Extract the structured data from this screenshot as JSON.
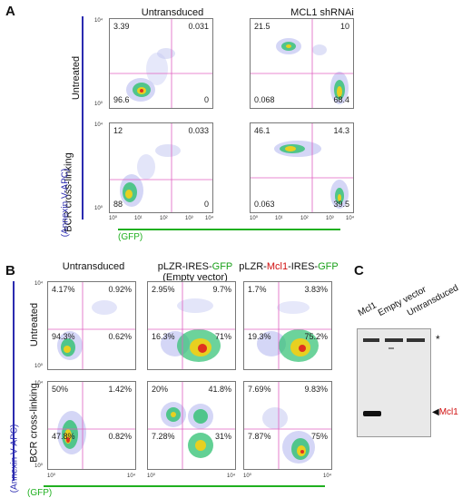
{
  "panel_a": {
    "letter": "A",
    "col_titles": [
      "Untransduced",
      "MCL1 shRNAi"
    ],
    "row_titles": [
      "Untreated",
      "BCR cross-linking"
    ],
    "y_axis": "(Annexin V-APC)",
    "x_axis": "(GFP)",
    "plots": [
      {
        "ul": "3.39",
        "ur": "0.031",
        "ll": "96.6",
        "lr": "0"
      },
      {
        "ul": "21.5",
        "ur": "10",
        "ll": "0.068",
        "lr": "68.4"
      },
      {
        "ul": "12",
        "ur": "0.033",
        "ll": "88",
        "lr": "0"
      },
      {
        "ul": "46.1",
        "ur": "14.3",
        "ll": "0.063",
        "lr": "39.5"
      }
    ]
  },
  "panel_b": {
    "letter": "B",
    "col_titles": [
      {
        "line1_a": "Untransduced",
        "line1_b": "",
        "line1_c": "",
        "line1_d": "",
        "line1_e": "",
        "line2": ""
      },
      {
        "line1_a": "pLZR-IRES-",
        "line1_b": "GFP",
        "line1_c": "",
        "line1_d": "",
        "line1_e": "",
        "line2": "(Empty vector)"
      },
      {
        "line1_a": "pLZR-",
        "line1_b": "Mcl1",
        "line1_c": "-IRES-",
        "line1_d": "GFP",
        "line1_e": "",
        "line2": ""
      }
    ],
    "row_titles": [
      "Untreated",
      "BCR cross-linking"
    ],
    "y_axis": "(Annexin V-APC)",
    "x_axis": "(GFP)",
    "plots": [
      {
        "ul": "4.17%",
        "ur": "0.92%",
        "ll": "94.3%",
        "lr": "0.62%"
      },
      {
        "ul": "2.95%",
        "ur": "9.7%",
        "ll": "16.3%",
        "lr": "71%"
      },
      {
        "ul": "1.7%",
        "ur": "3.83%",
        "ll": "19.3%",
        "lr": "75.2%"
      },
      {
        "ul": "50%",
        "ur": "1.42%",
        "ll": "47.8%",
        "lr": "0.82%"
      },
      {
        "ul": "20%",
        "ur": "41.8%",
        "ll": "7.28%",
        "lr": "31%"
      },
      {
        "ul": "7.69%",
        "ur": "9.83%",
        "ll": "7.87%",
        "lr": "75%"
      }
    ]
  },
  "panel_c": {
    "letter": "C",
    "lanes": [
      "Mcl1",
      "Empty vector",
      "Untransduced"
    ],
    "band_label": "Mcl1",
    "star": "*"
  },
  "ticks": {
    "x": [
      "10⁰",
      "10¹",
      "10²",
      "10³",
      "10⁴"
    ],
    "y": [
      "10⁴",
      "10³",
      "10²",
      "10¹",
      "10⁰"
    ]
  },
  "colors": {
    "gate_line": "#e060c0",
    "axis_blue": "#2b2bb0",
    "axis_green": "#20b020",
    "accent_red": "#d01010"
  }
}
